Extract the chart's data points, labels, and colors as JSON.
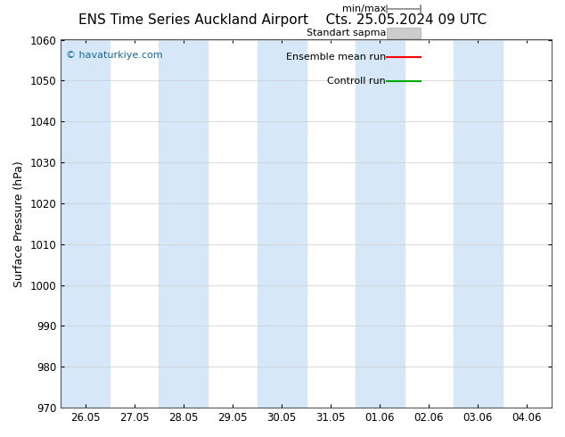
{
  "title_left": "ENS Time Series Auckland Airport",
  "title_right": "Cts. 25.05.2024 09 UTC",
  "ylabel": "Surface Pressure (hPa)",
  "ylim": [
    970,
    1060
  ],
  "yticks": [
    970,
    980,
    990,
    1000,
    1010,
    1020,
    1030,
    1040,
    1050,
    1060
  ],
  "x_labels": [
    "26.05",
    "27.05",
    "28.05",
    "29.05",
    "30.05",
    "31.05",
    "01.06",
    "02.06",
    "03.06",
    "04.06"
  ],
  "x_values": [
    0,
    1,
    2,
    3,
    4,
    5,
    6,
    7,
    8,
    9
  ],
  "shaded_columns": [
    0,
    2,
    4,
    6,
    8
  ],
  "shade_color": "#d6e8f7",
  "watermark": "© havaturkiye.com",
  "legend_entries": [
    "min/max",
    "Standart sapma",
    "Ensemble mean run",
    "Controll run"
  ],
  "legend_colors": [
    "#a0a0a0",
    "#c0c0c0",
    "#ff0000",
    "#00aa00"
  ],
  "background_color": "#ffffff",
  "plot_bg_color": "#ffffff",
  "title_fontsize": 11,
  "axis_fontsize": 9,
  "tick_fontsize": 8.5
}
